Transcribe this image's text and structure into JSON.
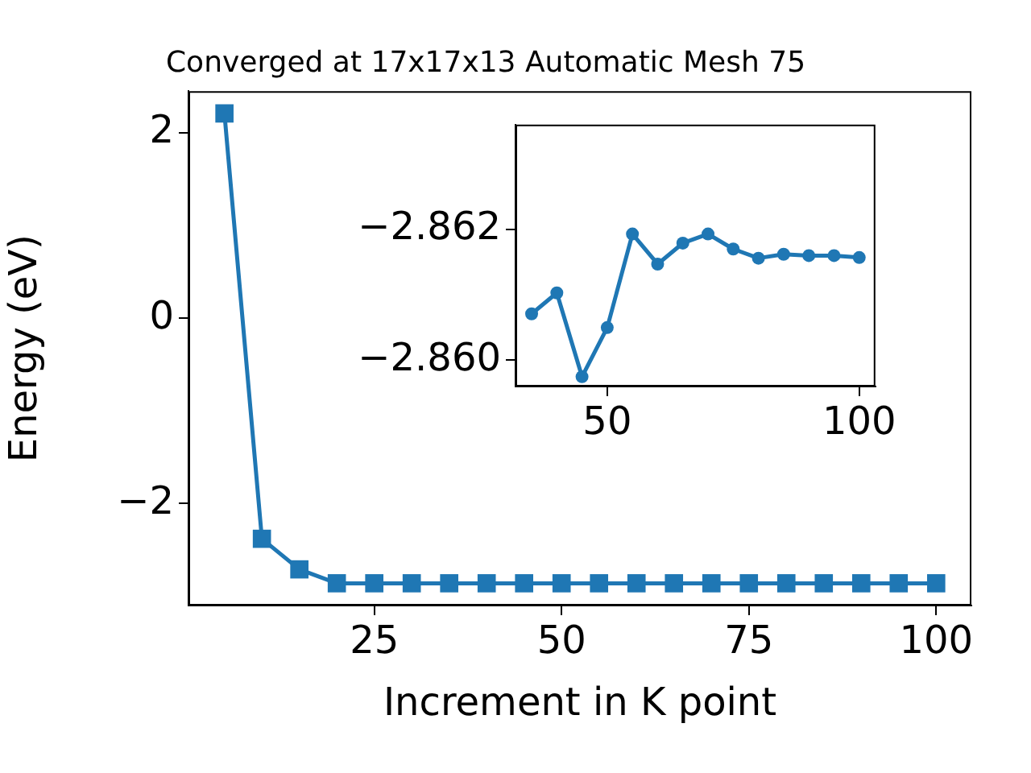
{
  "chart_data": [
    {
      "type": "line",
      "title": "Converged at 17x17x13 Automatic Mesh 75",
      "xlabel": "Increment in K point",
      "ylabel": "Energy (eV)",
      "x": [
        5,
        10,
        15,
        20,
        25,
        30,
        35,
        40,
        45,
        50,
        55,
        60,
        65,
        70,
        75,
        80,
        85,
        90,
        95,
        100
      ],
      "series": [
        {
          "color": "#1f77b4",
          "values": [
            2.21,
            -2.38,
            -2.71,
            -2.86,
            -2.86,
            -2.86,
            -2.86,
            -2.86,
            -2.86,
            -2.86,
            -2.86,
            -2.86,
            -2.86,
            -2.86,
            -2.86,
            -2.86,
            -2.86,
            -2.86,
            -2.86,
            -2.86
          ]
        }
      ],
      "xlim": [
        0.2,
        104.7
      ],
      "ylim": [
        -3.1,
        2.45
      ],
      "xticks": [
        25,
        50,
        75,
        100
      ],
      "yticks": [
        {
          "value": -2,
          "label": "−2"
        },
        0,
        2
      ],
      "marker": "square",
      "line_style": "solid",
      "grid": false,
      "legend": false
    },
    {
      "type": "line",
      "x": [
        35,
        40,
        45,
        50,
        55,
        60,
        65,
        70,
        75,
        80,
        85,
        90,
        95,
        100
      ],
      "series": [
        {
          "color": "#1f77b4",
          "values": [
            -2.86071,
            -2.86103,
            -2.85975,
            -2.8605,
            -2.86193,
            -2.86147,
            -2.86179,
            -2.86193,
            -2.8617,
            -2.86156,
            -2.86162,
            -2.8616,
            -2.8616,
            -2.86157
          ]
        }
      ],
      "xlim": [
        31.8,
        103.2
      ],
      "ylim": [
        -2.8596,
        -2.8636
      ],
      "xticks": [
        50,
        100
      ],
      "yticks": [
        {
          "value": -2.862,
          "label": "−2.862"
        },
        {
          "value": -2.86,
          "label": "−2.860"
        }
      ],
      "marker": "circle",
      "line_style": "solid",
      "grid": false,
      "legend": false
    }
  ]
}
